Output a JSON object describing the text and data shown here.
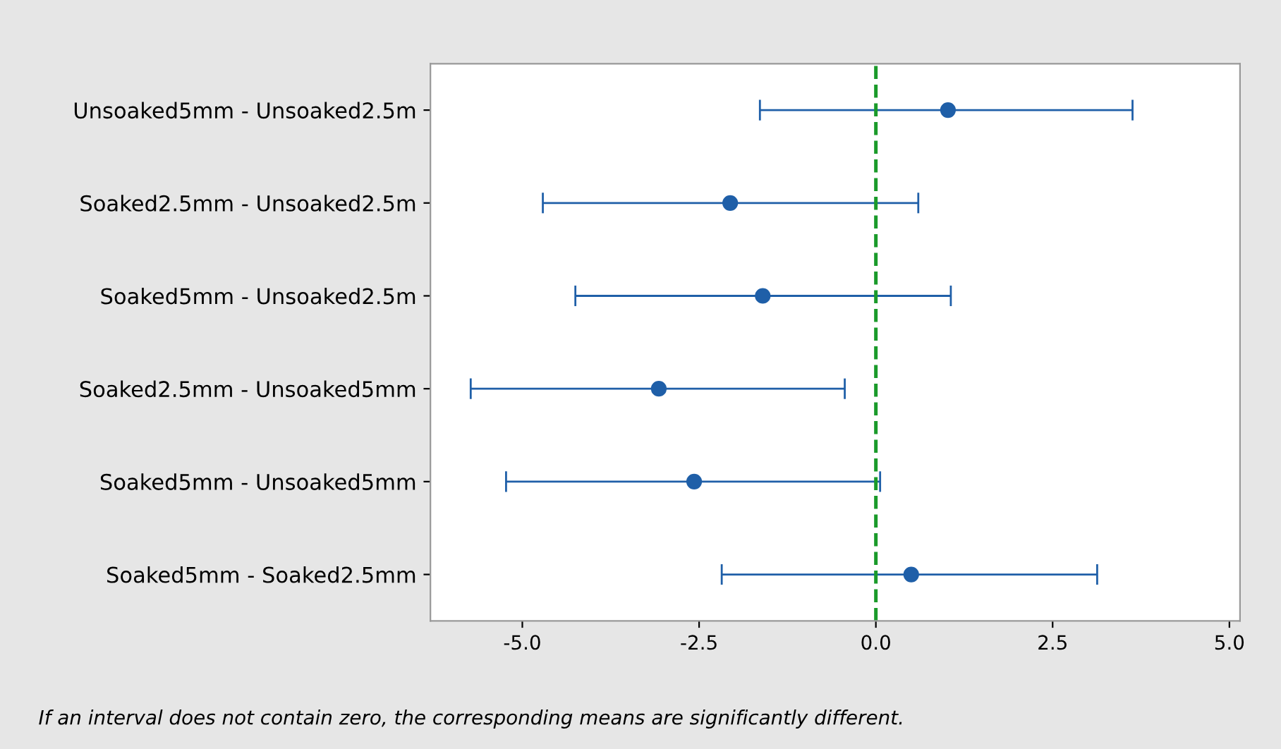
{
  "chart_data": {
    "type": "scatter",
    "orientation": "horizontal",
    "categories": [
      "Unsoaked5mm - Unsoaked2.5m",
      "Soaked2.5mm - Unsoaked2.5m",
      "Soaked5mm - Unsoaked2.5m",
      "Soaked2.5mm - Unsoaked5mm",
      "Soaked5mm - Unsoaked5mm",
      "Soaked5mm - Soaked2.5mm"
    ],
    "series": [
      {
        "color": "#1f5fa8",
        "values": [
          1.02,
          -2.06,
          -1.6,
          -3.07,
          -2.57,
          0.5
        ],
        "errors": [
          [
            -1.64,
            3.63
          ],
          [
            -4.71,
            0.6
          ],
          [
            -4.25,
            1.06
          ],
          [
            -5.73,
            -0.44
          ],
          [
            -5.23,
            0.06
          ],
          [
            -2.18,
            3.13
          ]
        ]
      }
    ],
    "marker": "circle",
    "xlim": [
      -6.3,
      5.15
    ],
    "xticks": [
      {
        "value": -5,
        "label": "-5.0"
      },
      {
        "value": -2.5,
        "label": "-2.5"
      },
      {
        "value": 0,
        "label": "0.0"
      },
      {
        "value": 2.5,
        "label": "2.5"
      },
      {
        "value": 5,
        "label": "5.0"
      }
    ],
    "ref_lines": [
      {
        "axis": "x",
        "value": 0,
        "color": "#1a9a2a",
        "line_style": "dashed"
      }
    ],
    "annotations": [
      "If an interval does not contain zero, the corresponding means are significantly different."
    ],
    "grid": false,
    "legend": false
  }
}
